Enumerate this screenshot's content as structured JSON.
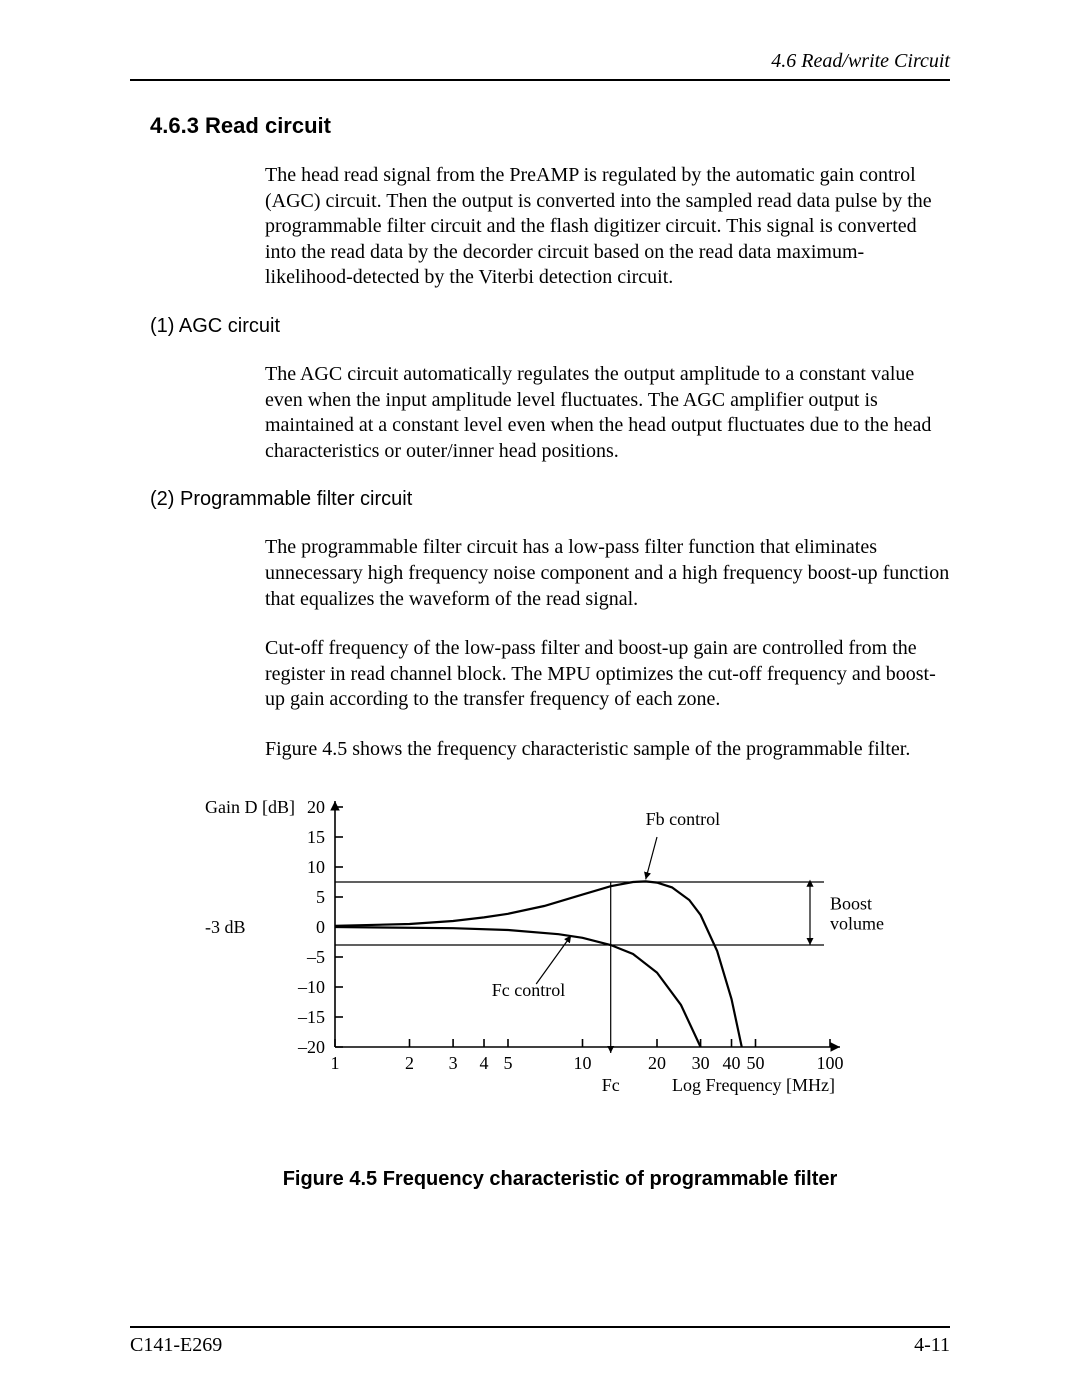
{
  "header": {
    "running_title": "4.6  Read/write Circuit"
  },
  "section": {
    "number_title": "4.6.3  Read circuit",
    "intro": "The head read signal from the PreAMP is regulated by the automatic gain control (AGC) circuit.  Then the output is converted into the sampled read data pulse by the programmable filter circuit and the flash digitizer circuit.  This signal is converted into the read data by the decorder circuit based on the read data maximum-likelihood-detected by the Viterbi detection circuit."
  },
  "sub1": {
    "heading": "(1)  AGC circuit",
    "para": "The AGC circuit automatically regulates the output amplitude to a constant value even when the input amplitude level fluctuates.  The AGC amplifier output is maintained at a constant level even when the head output fluctuates due to the head characteristics or outer/inner head positions."
  },
  "sub2": {
    "heading": "(2)  Programmable filter circuit",
    "para1": "The programmable filter circuit has a low-pass filter function that eliminates unnecessary high frequency noise component and a high frequency boost-up function that equalizes the waveform of the read signal.",
    "para2": "Cut-off frequency of the low-pass filter and boost-up gain are controlled from the register in read channel block.  The MPU optimizes the cut-off frequency and boost-up gain according to the transfer frequency of each zone.",
    "para3": "Figure 4.5 shows the frequency characteristic sample of the programmable filter."
  },
  "figure": {
    "caption": "Figure 4.5  Frequency characteristic of programmable filter",
    "y_label": "Gain D [dB]",
    "y_side_label": "-3 dB",
    "x_label": "Log Frequency [MHz]",
    "fc_label": "Fc",
    "fb_control_label": "Fb control",
    "fc_control_label": "Fc control",
    "boost_label_1": "Boost",
    "boost_label_2": "volume",
    "y_ticks": [
      "20",
      "15",
      "10",
      "5",
      "0",
      "–5",
      "–10",
      "–15",
      "–20"
    ],
    "x_ticks": [
      "1",
      "2",
      "3",
      "4",
      "5",
      "10",
      "20",
      "30",
      "40",
      "50",
      "100"
    ],
    "y_range_db": [
      -20,
      20
    ],
    "x_range_mhz_log": [
      1,
      100
    ],
    "curve_boosted": [
      [
        1,
        0.2
      ],
      [
        2,
        0.5
      ],
      [
        3,
        1.0
      ],
      [
        4,
        1.6
      ],
      [
        5,
        2.2
      ],
      [
        7,
        3.5
      ],
      [
        10,
        5.4
      ],
      [
        13,
        6.8
      ],
      [
        16,
        7.5
      ],
      [
        18,
        7.6
      ],
      [
        20,
        7.4
      ],
      [
        23,
        6.6
      ],
      [
        27,
        4.5
      ],
      [
        30,
        2.0
      ],
      [
        35,
        -4.0
      ],
      [
        40,
        -12.0
      ],
      [
        44,
        -20.0
      ]
    ],
    "curve_flat": [
      [
        1,
        0.0
      ],
      [
        3,
        -0.2
      ],
      [
        5,
        -0.5
      ],
      [
        8,
        -1.2
      ],
      [
        10,
        -1.8
      ],
      [
        13,
        -3.0
      ],
      [
        16,
        -4.5
      ],
      [
        20,
        -7.6
      ],
      [
        25,
        -13.0
      ],
      [
        30,
        -20.0
      ]
    ],
    "ref_lines_db": [
      7.5,
      -3.0
    ],
    "fc_line_mhz": 13,
    "colors": {
      "stroke": "#000000",
      "bg": "#ffffff"
    },
    "line_widths": {
      "axis": 1.6,
      "curve": 2.2,
      "ref": 1.2
    }
  },
  "footer": {
    "left": "C141-E269",
    "right": "4-11"
  }
}
